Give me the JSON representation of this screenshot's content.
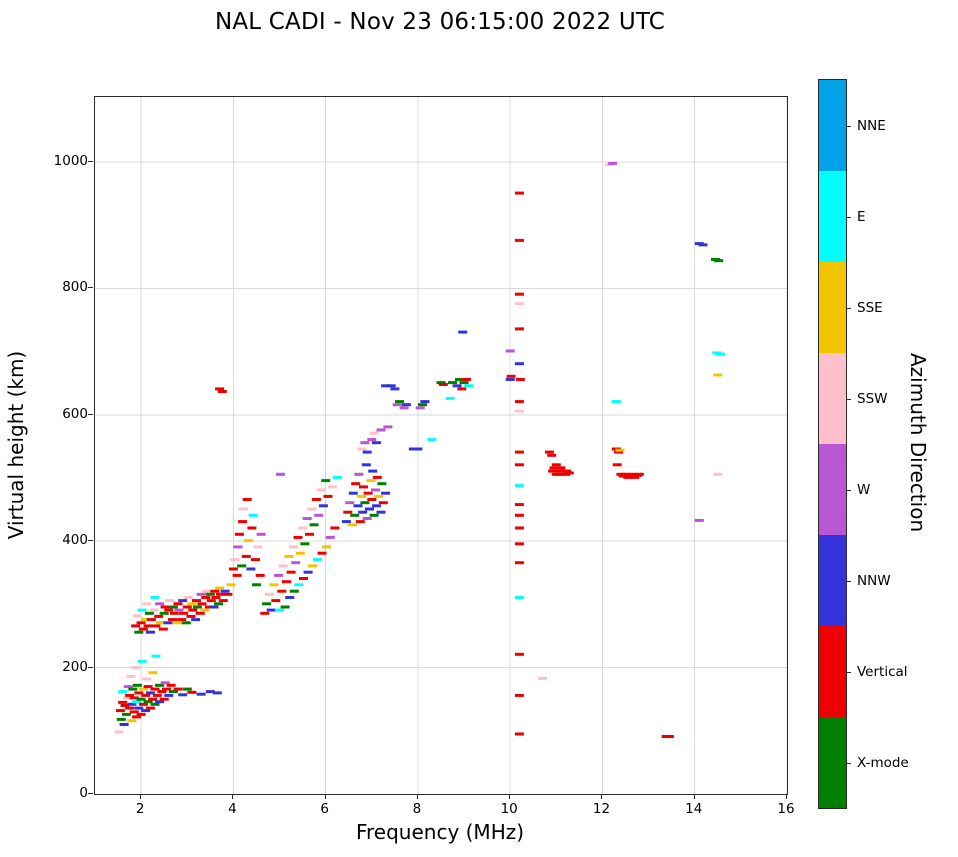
{
  "title": "NAL CADI - Nov 23 06:15:00 2022 UTC",
  "chart_data": {
    "type": "scatter",
    "marker": "horizontal-dash",
    "title": "NAL CADI - Nov 23 06:15:00 2022 UTC",
    "xlabel": "Frequency (MHz)",
    "ylabel": "Virtual height (km)",
    "xlim": [
      1,
      16
    ],
    "ylim": [
      0,
      1103
    ],
    "x_ticks": [
      2,
      4,
      6,
      8,
      10,
      12,
      14,
      16
    ],
    "y_ticks": [
      0,
      200,
      400,
      600,
      800,
      1000
    ],
    "grid": true,
    "grid_color": "#d9d9d9",
    "colorbar": {
      "label": "Azimuth Direction",
      "categories": [
        {
          "label": "NNE",
          "color": "#00a2e8"
        },
        {
          "label": "E",
          "color": "#00ffff"
        },
        {
          "label": "SSE",
          "color": "#f5c400"
        },
        {
          "label": "SSW",
          "color": "#ffc0cb"
        },
        {
          "label": "W",
          "color": "#ba55d3"
        },
        {
          "label": "NNW",
          "color": "#3333dd"
        },
        {
          "label": "Vertical",
          "color": "#ee0000"
        },
        {
          "label": "X-mode",
          "color": "#008000"
        }
      ]
    },
    "points_format": [
      "frequency_MHz",
      "virtual_height_km",
      "category_index"
    ],
    "points": [
      [
        1.52,
        98,
        3
      ],
      [
        1.55,
        132,
        6
      ],
      [
        1.57,
        118,
        7
      ],
      [
        1.6,
        145,
        6
      ],
      [
        1.6,
        162,
        1
      ],
      [
        1.63,
        110,
        5
      ],
      [
        1.65,
        140,
        6
      ],
      [
        1.68,
        126,
        7
      ],
      [
        1.7,
        152,
        3
      ],
      [
        1.72,
        170,
        4
      ],
      [
        1.75,
        136,
        6
      ],
      [
        1.75,
        156,
        6
      ],
      [
        1.78,
        186,
        3
      ],
      [
        1.8,
        116,
        2
      ],
      [
        1.8,
        142,
        5
      ],
      [
        1.82,
        166,
        7
      ],
      [
        1.85,
        130,
        6
      ],
      [
        1.85,
        152,
        6
      ],
      [
        1.88,
        200,
        3
      ],
      [
        1.9,
        122,
        6
      ],
      [
        1.9,
        146,
        1
      ],
      [
        1.92,
        172,
        7
      ],
      [
        1.95,
        136,
        5
      ],
      [
        1.95,
        160,
        6
      ],
      [
        2.0,
        126,
        6
      ],
      [
        2.0,
        150,
        7
      ],
      [
        2.02,
        210,
        1
      ],
      [
        2.05,
        142,
        6
      ],
      [
        2.05,
        166,
        2
      ],
      [
        2.1,
        132,
        5
      ],
      [
        2.1,
        156,
        6
      ],
      [
        2.12,
        182,
        3
      ],
      [
        2.15,
        146,
        7
      ],
      [
        2.15,
        170,
        6
      ],
      [
        2.2,
        136,
        6
      ],
      [
        2.2,
        160,
        5
      ],
      [
        2.25,
        150,
        6
      ],
      [
        2.25,
        192,
        2
      ],
      [
        2.3,
        142,
        7
      ],
      [
        2.3,
        166,
        6
      ],
      [
        2.32,
        218,
        1
      ],
      [
        2.35,
        156,
        6
      ],
      [
        2.4,
        146,
        5
      ],
      [
        2.4,
        172,
        7
      ],
      [
        2.45,
        162,
        6
      ],
      [
        2.5,
        150,
        6
      ],
      [
        2.52,
        176,
        4
      ],
      [
        2.55,
        166,
        6
      ],
      [
        2.6,
        156,
        5
      ],
      [
        2.65,
        172,
        6
      ],
      [
        2.7,
        162,
        7
      ],
      [
        2.8,
        166,
        6
      ],
      [
        2.9,
        157,
        5
      ],
      [
        3.0,
        166,
        7
      ],
      [
        3.1,
        161,
        6
      ],
      [
        3.3,
        158,
        5
      ],
      [
        3.5,
        162,
        5
      ],
      [
        3.65,
        160,
        5
      ],
      [
        1.88,
        266,
        6
      ],
      [
        1.92,
        282,
        3
      ],
      [
        1.95,
        256,
        7
      ],
      [
        2.0,
        271,
        6
      ],
      [
        2.02,
        291,
        1
      ],
      [
        2.05,
        261,
        6
      ],
      [
        2.1,
        276,
        2
      ],
      [
        2.12,
        301,
        3
      ],
      [
        2.15,
        266,
        6
      ],
      [
        2.18,
        286,
        7
      ],
      [
        2.2,
        256,
        5
      ],
      [
        2.22,
        276,
        6
      ],
      [
        2.28,
        291,
        3
      ],
      [
        2.3,
        311,
        1
      ],
      [
        2.32,
        266,
        6
      ],
      [
        2.38,
        281,
        6
      ],
      [
        2.4,
        301,
        4
      ],
      [
        2.42,
        271,
        2
      ],
      [
        2.48,
        261,
        6
      ],
      [
        2.5,
        286,
        7
      ],
      [
        2.52,
        296,
        6
      ],
      [
        2.58,
        271,
        5
      ],
      [
        2.6,
        291,
        6
      ],
      [
        2.62,
        306,
        3
      ],
      [
        2.68,
        276,
        6
      ],
      [
        2.7,
        296,
        7
      ],
      [
        2.72,
        286,
        6
      ],
      [
        2.78,
        271,
        2
      ],
      [
        2.8,
        301,
        6
      ],
      [
        2.82,
        291,
        4
      ],
      [
        2.88,
        276,
        6
      ],
      [
        2.9,
        306,
        5
      ],
      [
        2.92,
        286,
        6
      ],
      [
        2.98,
        271,
        7
      ],
      [
        3.0,
        296,
        6
      ],
      [
        3.02,
        311,
        3
      ],
      [
        3.08,
        281,
        6
      ],
      [
        3.1,
        301,
        2
      ],
      [
        3.12,
        291,
        6
      ],
      [
        3.18,
        276,
        5
      ],
      [
        3.2,
        306,
        6
      ],
      [
        3.22,
        296,
        7
      ],
      [
        3.28,
        286,
        6
      ],
      [
        3.3,
        316,
        4
      ],
      [
        3.32,
        301,
        6
      ],
      [
        3.38,
        291,
        2
      ],
      [
        3.4,
        311,
        6
      ],
      [
        3.42,
        321,
        3
      ],
      [
        3.48,
        296,
        6
      ],
      [
        3.5,
        316,
        7
      ],
      [
        3.52,
        306,
        6
      ],
      [
        3.58,
        296,
        5
      ],
      [
        3.6,
        321,
        6
      ],
      [
        3.62,
        311,
        6
      ],
      [
        3.68,
        301,
        7
      ],
      [
        3.7,
        326,
        2
      ],
      [
        3.72,
        316,
        6
      ],
      [
        3.78,
        306,
        6
      ],
      [
        3.82,
        321,
        5
      ],
      [
        3.88,
        316,
        6
      ],
      [
        3.7,
        641,
        6
      ],
      [
        3.76,
        637,
        6
      ],
      [
        3.95,
        331,
        2
      ],
      [
        4.0,
        356,
        6
      ],
      [
        4.03,
        371,
        3
      ],
      [
        4.08,
        346,
        6
      ],
      [
        4.1,
        391,
        4
      ],
      [
        4.13,
        411,
        6
      ],
      [
        4.18,
        361,
        7
      ],
      [
        4.2,
        431,
        6
      ],
      [
        4.22,
        451,
        3
      ],
      [
        4.28,
        376,
        6
      ],
      [
        4.3,
        466,
        6
      ],
      [
        4.33,
        401,
        2
      ],
      [
        4.38,
        356,
        5
      ],
      [
        4.4,
        421,
        6
      ],
      [
        4.43,
        441,
        1
      ],
      [
        4.48,
        371,
        6
      ],
      [
        4.5,
        331,
        7
      ],
      [
        4.53,
        391,
        3
      ],
      [
        4.58,
        346,
        6
      ],
      [
        4.6,
        411,
        4
      ],
      [
        4.68,
        286,
        6
      ],
      [
        4.72,
        301,
        7
      ],
      [
        4.78,
        316,
        3
      ],
      [
        4.82,
        291,
        5
      ],
      [
        4.88,
        331,
        2
      ],
      [
        4.92,
        306,
        6
      ],
      [
        4.98,
        346,
        4
      ],
      [
        5.0,
        291,
        1
      ],
      [
        5.02,
        506,
        4
      ],
      [
        5.05,
        321,
        6
      ],
      [
        5.08,
        361,
        3
      ],
      [
        5.12,
        296,
        7
      ],
      [
        5.15,
        336,
        6
      ],
      [
        5.2,
        376,
        2
      ],
      [
        5.22,
        311,
        5
      ],
      [
        5.25,
        351,
        6
      ],
      [
        5.3,
        391,
        3
      ],
      [
        5.32,
        321,
        7
      ],
      [
        5.35,
        366,
        4
      ],
      [
        5.4,
        406,
        6
      ],
      [
        5.42,
        331,
        1
      ],
      [
        5.45,
        381,
        2
      ],
      [
        5.5,
        421,
        3
      ],
      [
        5.52,
        341,
        6
      ],
      [
        5.55,
        396,
        7
      ],
      [
        5.6,
        436,
        4
      ],
      [
        5.62,
        351,
        5
      ],
      [
        5.65,
        411,
        6
      ],
      [
        5.7,
        451,
        3
      ],
      [
        5.72,
        361,
        2
      ],
      [
        5.75,
        426,
        7
      ],
      [
        5.8,
        466,
        6
      ],
      [
        5.82,
        371,
        1
      ],
      [
        5.85,
        441,
        4
      ],
      [
        5.9,
        481,
        3
      ],
      [
        5.92,
        381,
        6
      ],
      [
        5.95,
        456,
        5
      ],
      [
        6.0,
        496,
        7
      ],
      [
        6.02,
        391,
        2
      ],
      [
        6.05,
        471,
        6
      ],
      [
        6.1,
        406,
        4
      ],
      [
        6.15,
        486,
        3
      ],
      [
        6.2,
        421,
        6
      ],
      [
        6.25,
        501,
        1
      ],
      [
        6.45,
        431,
        5
      ],
      [
        6.48,
        446,
        6
      ],
      [
        6.52,
        461,
        4
      ],
      [
        6.58,
        426,
        2
      ],
      [
        6.6,
        476,
        5
      ],
      [
        6.63,
        441,
        7
      ],
      [
        6.65,
        491,
        6
      ],
      [
        6.7,
        456,
        5
      ],
      [
        6.72,
        506,
        4
      ],
      [
        6.75,
        431,
        6
      ],
      [
        6.78,
        471,
        2
      ],
      [
        6.8,
        446,
        5
      ],
      [
        6.82,
        486,
        6
      ],
      [
        6.85,
        461,
        7
      ],
      [
        6.88,
        521,
        5
      ],
      [
        6.9,
        436,
        4
      ],
      [
        6.92,
        476,
        6
      ],
      [
        6.95,
        451,
        5
      ],
      [
        6.98,
        496,
        2
      ],
      [
        7.0,
        466,
        6
      ],
      [
        7.02,
        511,
        5
      ],
      [
        7.05,
        441,
        7
      ],
      [
        7.08,
        481,
        4
      ],
      [
        7.1,
        456,
        5
      ],
      [
        7.12,
        501,
        6
      ],
      [
        7.15,
        471,
        2
      ],
      [
        7.2,
        446,
        5
      ],
      [
        7.22,
        491,
        7
      ],
      [
        7.25,
        461,
        6
      ],
      [
        7.3,
        476,
        5
      ],
      [
        6.78,
        546,
        3
      ],
      [
        6.85,
        556,
        4
      ],
      [
        6.9,
        541,
        5
      ],
      [
        7.0,
        561,
        4
      ],
      [
        7.05,
        571,
        3
      ],
      [
        7.1,
        556,
        5
      ],
      [
        7.2,
        576,
        4
      ],
      [
        7.3,
        646,
        5
      ],
      [
        7.35,
        581,
        4
      ],
      [
        7.42,
        646,
        5
      ],
      [
        7.5,
        641,
        5
      ],
      [
        7.55,
        616,
        4
      ],
      [
        7.6,
        621,
        7
      ],
      [
        7.7,
        611,
        4
      ],
      [
        7.75,
        616,
        5
      ],
      [
        7.9,
        546,
        5
      ],
      [
        8.0,
        546,
        5
      ],
      [
        8.05,
        611,
        4
      ],
      [
        8.1,
        616,
        7
      ],
      [
        8.15,
        621,
        5
      ],
      [
        8.3,
        561,
        1
      ],
      [
        8.5,
        651,
        7
      ],
      [
        8.55,
        648,
        6
      ],
      [
        8.7,
        626,
        1
      ],
      [
        8.75,
        651,
        7
      ],
      [
        8.85,
        646,
        5
      ],
      [
        8.9,
        656,
        7
      ],
      [
        8.95,
        641,
        6
      ],
      [
        8.97,
        731,
        5
      ],
      [
        9.0,
        651,
        7
      ],
      [
        9.05,
        656,
        6
      ],
      [
        9.1,
        646,
        1
      ],
      [
        10.0,
        656,
        5
      ],
      [
        10.02,
        661,
        6
      ],
      [
        10.0,
        701,
        4
      ],
      [
        10.2,
        95,
        6
      ],
      [
        10.2,
        156,
        6
      ],
      [
        10.2,
        221,
        6
      ],
      [
        10.2,
        311,
        1
      ],
      [
        10.2,
        366,
        6
      ],
      [
        10.2,
        396,
        6
      ],
      [
        10.2,
        421,
        6
      ],
      [
        10.2,
        441,
        6
      ],
      [
        10.2,
        458,
        6
      ],
      [
        10.2,
        488,
        1
      ],
      [
        10.2,
        521,
        6
      ],
      [
        10.2,
        541,
        6
      ],
      [
        10.2,
        606,
        3
      ],
      [
        10.2,
        621,
        6
      ],
      [
        10.22,
        656,
        6
      ],
      [
        10.2,
        681,
        5
      ],
      [
        10.2,
        736,
        6
      ],
      [
        10.2,
        776,
        3
      ],
      [
        10.2,
        791,
        6
      ],
      [
        10.2,
        876,
        6
      ],
      [
        10.2,
        951,
        6
      ],
      [
        10.7,
        183,
        3
      ],
      [
        10.85,
        541,
        6
      ],
      [
        10.9,
        536,
        6
      ],
      [
        10.92,
        511,
        6
      ],
      [
        10.95,
        516,
        6
      ],
      [
        11.0,
        506,
        6
      ],
      [
        11.0,
        521,
        6
      ],
      [
        11.05,
        511,
        6
      ],
      [
        11.08,
        506,
        6
      ],
      [
        11.1,
        516,
        6
      ],
      [
        11.15,
        511,
        6
      ],
      [
        11.2,
        506,
        6
      ],
      [
        11.22,
        511,
        6
      ],
      [
        11.28,
        508,
        6
      ],
      [
        12.15,
        996,
        3
      ],
      [
        12.22,
        998,
        4
      ],
      [
        12.3,
        621,
        1
      ],
      [
        12.3,
        546,
        6
      ],
      [
        12.35,
        541,
        6
      ],
      [
        12.32,
        521,
        6
      ],
      [
        12.38,
        544,
        2
      ],
      [
        12.4,
        506,
        6
      ],
      [
        12.45,
        503,
        6
      ],
      [
        12.5,
        506,
        6
      ],
      [
        12.55,
        501,
        6
      ],
      [
        12.6,
        504,
        6
      ],
      [
        12.65,
        506,
        6
      ],
      [
        12.7,
        501,
        6
      ],
      [
        12.75,
        504,
        6
      ],
      [
        12.8,
        506,
        6
      ],
      [
        13.38,
        91,
        6
      ],
      [
        13.45,
        91,
        6
      ],
      [
        14.1,
        871,
        5
      ],
      [
        14.18,
        869,
        5
      ],
      [
        14.45,
        846,
        7
      ],
      [
        14.52,
        844,
        7
      ],
      [
        14.48,
        698,
        1
      ],
      [
        14.56,
        696,
        1
      ],
      [
        14.5,
        663,
        2
      ],
      [
        14.1,
        433,
        4
      ],
      [
        14.5,
        506,
        3
      ]
    ]
  }
}
